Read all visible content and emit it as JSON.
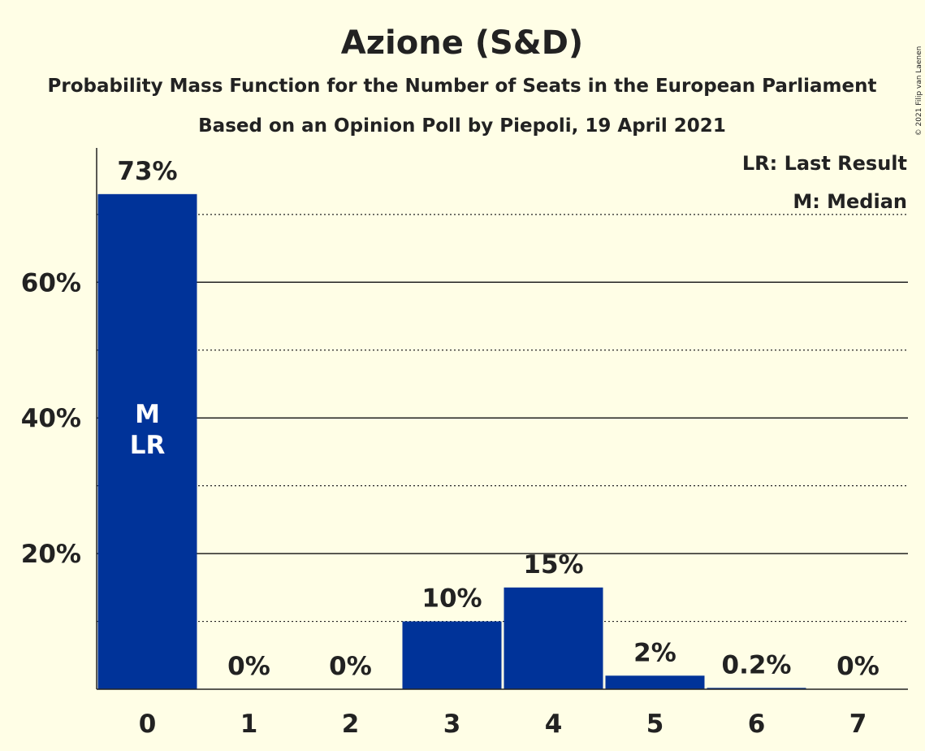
{
  "chart_data": {
    "type": "bar",
    "title": "Azione (S&D)",
    "subtitle": "Probability Mass Function for the Number of Seats in the European Parliament",
    "subtitle2": "Based on an Opinion Poll by Piepoli, 19 April 2021",
    "categories": [
      "0",
      "1",
      "2",
      "3",
      "4",
      "5",
      "6",
      "7"
    ],
    "values": [
      73,
      0,
      0,
      10,
      15,
      2,
      0.2,
      0
    ],
    "value_labels": [
      "73%",
      "0%",
      "0%",
      "10%",
      "15%",
      "2%",
      "0.2%",
      "0%"
    ],
    "ylim": [
      0,
      80
    ],
    "yticks": [
      20,
      40,
      60
    ],
    "ytick_labels": [
      "20%",
      "40%",
      "60%"
    ],
    "minor_gridlines": [
      10,
      30,
      50,
      70
    ],
    "in_bar_annotations": [
      {
        "category": "0",
        "lines": [
          "M",
          "LR"
        ]
      }
    ],
    "legend": [
      "LR: Last Result",
      "M: Median"
    ],
    "legend_position": "top-right",
    "bar_color": "#003399",
    "copyright": "© 2021 Filip van Laenen"
  }
}
